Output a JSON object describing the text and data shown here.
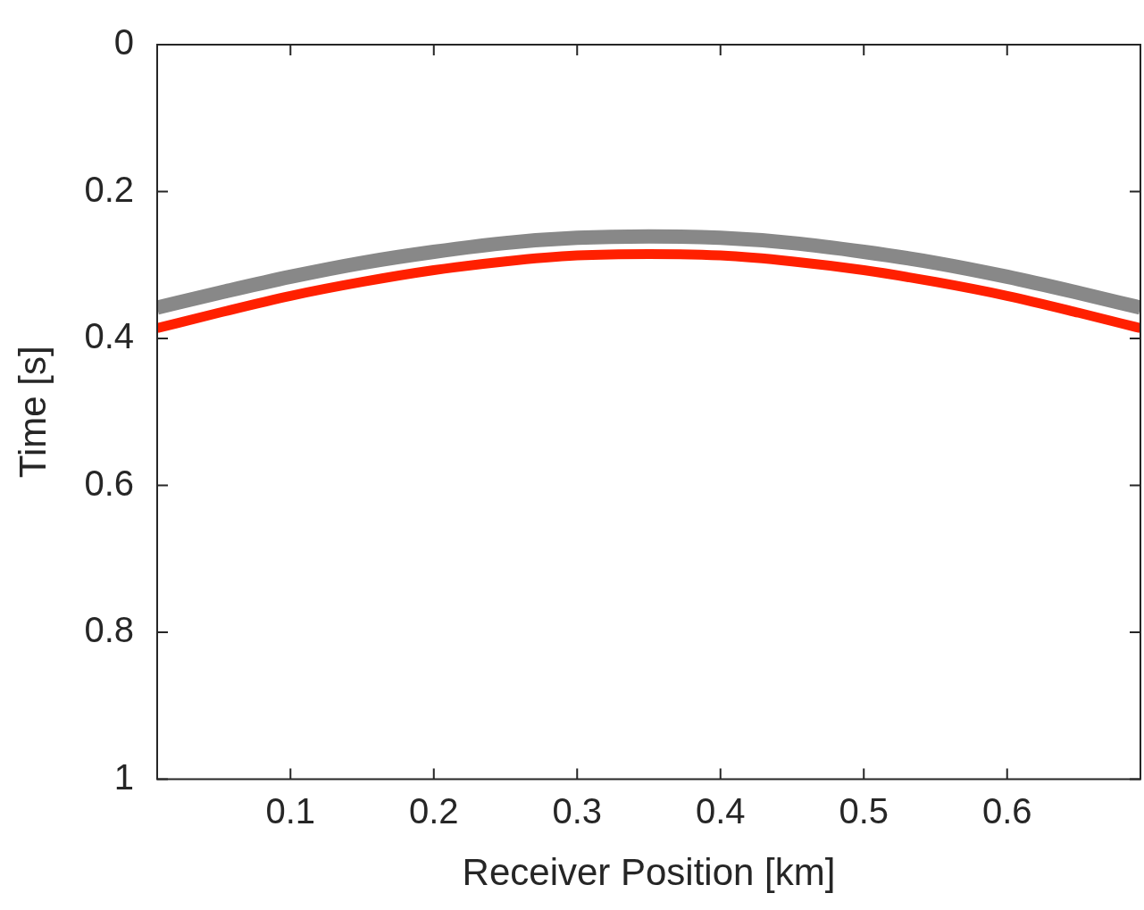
{
  "chart_data": {
    "type": "line",
    "xlabel": "Receiver Position [km]",
    "ylabel": "Time [s]",
    "x": [
      0.007,
      0.05,
      0.1,
      0.15,
      0.2,
      0.25,
      0.3,
      0.35,
      0.4,
      0.45,
      0.5,
      0.55,
      0.6,
      0.65,
      0.693
    ],
    "series": [
      {
        "color": "#888888",
        "values": [
          0.358,
          0.338,
          0.316,
          0.297,
          0.282,
          0.27,
          0.263,
          0.261,
          0.263,
          0.27,
          0.282,
          0.297,
          0.316,
          0.338,
          0.358
        ]
      },
      {
        "color": "#ff2000",
        "values": [
          0.386,
          0.365,
          0.342,
          0.323,
          0.307,
          0.295,
          0.287,
          0.285,
          0.287,
          0.295,
          0.307,
          0.323,
          0.342,
          0.365,
          0.386
        ]
      }
    ],
    "xlim": [
      0.007,
      0.693
    ],
    "xticks": [
      0.1,
      0.2,
      0.3,
      0.4,
      0.5,
      0.6
    ],
    "ylim": [
      1,
      0
    ],
    "yticks": [
      0,
      0.2,
      0.4,
      0.6,
      0.8,
      1
    ],
    "grid": false,
    "legend": false,
    "marker": "none",
    "line_style": "solid"
  }
}
